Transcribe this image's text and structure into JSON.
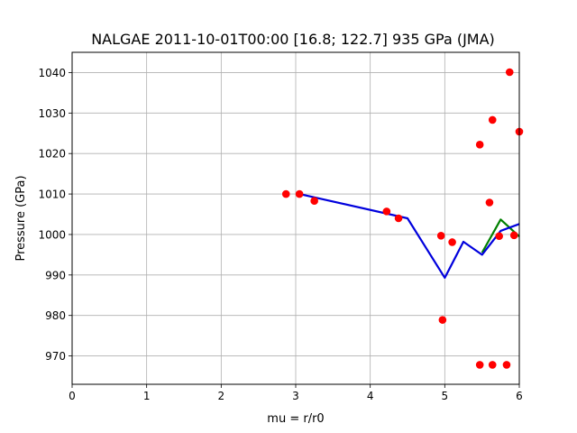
{
  "chart_data": {
    "type": "scatter",
    "title": "NALGAE 2011-10-01T00:00 [16.8; 122.7] 935 GPa (JMA)",
    "xlabel": "mu = r/r0",
    "ylabel": "Pressure (GPa)",
    "xlim": [
      0,
      6
    ],
    "ylim": [
      963,
      1045
    ],
    "xticks": [
      0,
      1,
      2,
      3,
      4,
      5,
      6
    ],
    "yticks": [
      970,
      980,
      990,
      1000,
      1010,
      1020,
      1030,
      1040
    ],
    "grid": true,
    "colors": {
      "points": "#ff0000",
      "blue_line": "#0000dd",
      "green_line": "#008000",
      "grid": "#b0b0b0"
    },
    "points": [
      {
        "x": 2.87,
        "y": 1010.0
      },
      {
        "x": 3.05,
        "y": 1010.0
      },
      {
        "x": 3.25,
        "y": 1008.3
      },
      {
        "x": 4.22,
        "y": 1005.7
      },
      {
        "x": 4.38,
        "y": 1004.0
      },
      {
        "x": 4.95,
        "y": 999.7
      },
      {
        "x": 5.1,
        "y": 998.1
      },
      {
        "x": 4.97,
        "y": 978.9
      },
      {
        "x": 5.47,
        "y": 1022.2
      },
      {
        "x": 5.6,
        "y": 1007.9
      },
      {
        "x": 5.64,
        "y": 1028.3
      },
      {
        "x": 5.73,
        "y": 999.6
      },
      {
        "x": 5.87,
        "y": 1040.1
      },
      {
        "x": 5.93,
        "y": 999.8
      },
      {
        "x": 6.0,
        "y": 1025.4
      },
      {
        "x": 5.47,
        "y": 967.8
      },
      {
        "x": 5.64,
        "y": 967.8
      },
      {
        "x": 5.83,
        "y": 967.8
      }
    ],
    "series": [
      {
        "name": "green",
        "x": [
          5.5,
          5.75,
          6.0
        ],
        "y": [
          995.5,
          1003.7,
          999.5
        ]
      },
      {
        "name": "blue",
        "x": [
          3.05,
          4.5,
          5.0,
          5.25,
          5.5,
          5.75,
          6.0
        ],
        "y": [
          1010.0,
          1004.0,
          989.3,
          998.2,
          995.0,
          1000.9,
          1002.6
        ]
      }
    ]
  }
}
